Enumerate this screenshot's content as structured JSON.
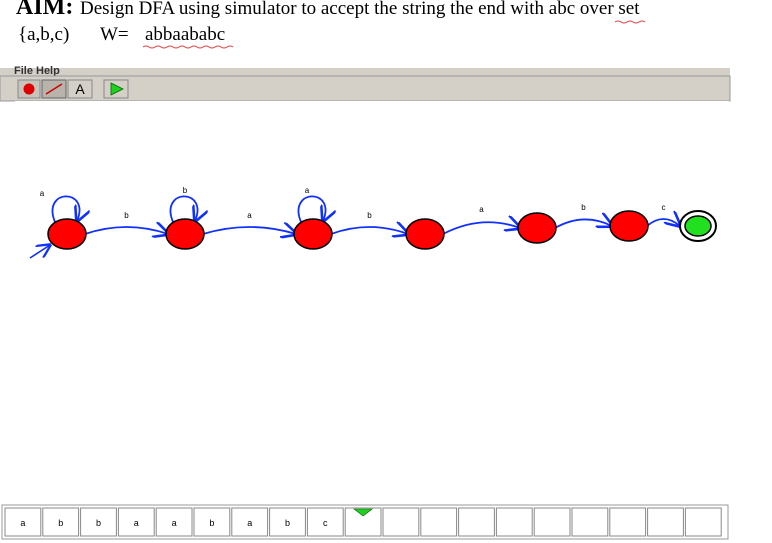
{
  "header": {
    "aim": "AIM:",
    "line1": "Design DFA using simulator to accept the string the end with ",
    "highlight": "abc",
    "line1_end": " over set",
    "set": "{a,b,c)",
    "w_label": "W=",
    "w": "abbaababc"
  },
  "menu": [
    "File",
    "Help"
  ],
  "toolbar": {
    "text_tool": "A"
  },
  "loops": [
    "a",
    "b",
    "a"
  ],
  "transitions": [
    "b",
    "a",
    "b",
    "a",
    "b",
    "c"
  ],
  "tape": [
    "a",
    "b",
    "b",
    "a",
    "a",
    "b",
    "a",
    "b",
    "c"
  ]
}
